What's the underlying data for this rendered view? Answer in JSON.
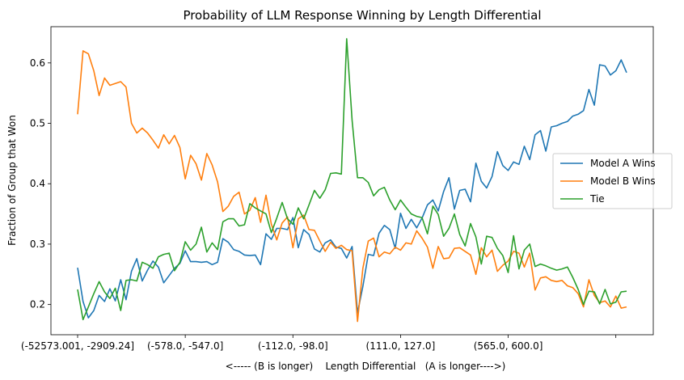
{
  "chart_data": {
    "type": "line",
    "title": "Probability of LLM Response Winning by Length Differential",
    "xlabel": "<----- (B is longer)    Length Differential   (A is longer---->)",
    "ylabel": "Fraction of Group that Won",
    "x_tick_labels": [
      "(-52573.001, -2909.24]",
      "(-578.0, -547.0]",
      "(-112.0, -98.0]",
      "(111.0, 127.0]",
      "(565.0, 600.0]",
      ""
    ],
    "x_tick_positions": [
      0,
      20,
      40,
      60,
      80,
      100
    ],
    "ylim": [
      0.15,
      0.66
    ],
    "yticks": [
      0.2,
      0.3,
      0.4,
      0.5,
      0.6
    ],
    "ytick_labels": [
      "0.2",
      "0.3",
      "0.4",
      "0.5",
      "0.6"
    ],
    "legend_position": "center-right",
    "series": [
      {
        "name": "Model A Wins",
        "color": "#1f77b4",
        "values": [
          0.261,
          0.205,
          0.178,
          0.19,
          0.215,
          0.205,
          0.226,
          0.206,
          0.241,
          0.208,
          0.255,
          0.276,
          0.239,
          0.257,
          0.272,
          0.262,
          0.236,
          0.248,
          0.26,
          0.268,
          0.289,
          0.271,
          0.271,
          0.27,
          0.271,
          0.266,
          0.27,
          0.309,
          0.303,
          0.291,
          0.288,
          0.282,
          0.281,
          0.282,
          0.266,
          0.317,
          0.308,
          0.326,
          0.326,
          0.324,
          0.344,
          0.294,
          0.324,
          0.316,
          0.292,
          0.287,
          0.302,
          0.307,
          0.295,
          0.293,
          0.277,
          0.296,
          0.186,
          0.23,
          0.283,
          0.281,
          0.318,
          0.331,
          0.324,
          0.293,
          0.351,
          0.326,
          0.341,
          0.327,
          0.343,
          0.365,
          0.373,
          0.355,
          0.387,
          0.41,
          0.358,
          0.389,
          0.391,
          0.37,
          0.434,
          0.404,
          0.393,
          0.412,
          0.453,
          0.43,
          0.422,
          0.436,
          0.432,
          0.462,
          0.44,
          0.481,
          0.488,
          0.454,
          0.494,
          0.496,
          0.5,
          0.503,
          0.512,
          0.515,
          0.521,
          0.556,
          0.53,
          0.597,
          0.595,
          0.58,
          0.587,
          0.605,
          0.584
        ]
      },
      {
        "name": "Model B Wins",
        "color": "#ff7f0e",
        "values": [
          0.515,
          0.62,
          0.615,
          0.587,
          0.546,
          0.575,
          0.563,
          0.566,
          0.569,
          0.56,
          0.5,
          0.484,
          0.492,
          0.484,
          0.472,
          0.459,
          0.481,
          0.466,
          0.48,
          0.46,
          0.408,
          0.447,
          0.433,
          0.406,
          0.45,
          0.431,
          0.403,
          0.354,
          0.363,
          0.379,
          0.386,
          0.35,
          0.356,
          0.377,
          0.336,
          0.381,
          0.333,
          0.307,
          0.335,
          0.345,
          0.294,
          0.342,
          0.348,
          0.324,
          0.323,
          0.305,
          0.288,
          0.303,
          0.293,
          0.298,
          0.291,
          0.289,
          0.172,
          0.26,
          0.305,
          0.31,
          0.279,
          0.287,
          0.284,
          0.295,
          0.29,
          0.302,
          0.3,
          0.322,
          0.31,
          0.295,
          0.26,
          0.296,
          0.276,
          0.277,
          0.293,
          0.294,
          0.288,
          0.282,
          0.25,
          0.294,
          0.279,
          0.29,
          0.255,
          0.265,
          0.272,
          0.288,
          0.285,
          0.262,
          0.285,
          0.224,
          0.244,
          0.246,
          0.24,
          0.238,
          0.24,
          0.231,
          0.228,
          0.218,
          0.196,
          0.241,
          0.215,
          0.203,
          0.206,
          0.196,
          0.214,
          0.194,
          0.196
        ]
      },
      {
        "name": "Tie",
        "color": "#2ca02c",
        "values": [
          0.225,
          0.175,
          0.196,
          0.218,
          0.238,
          0.221,
          0.21,
          0.227,
          0.19,
          0.24,
          0.241,
          0.239,
          0.27,
          0.266,
          0.26,
          0.279,
          0.283,
          0.285,
          0.256,
          0.27,
          0.304,
          0.29,
          0.3,
          0.328,
          0.287,
          0.302,
          0.291,
          0.337,
          0.342,
          0.342,
          0.33,
          0.332,
          0.367,
          0.36,
          0.355,
          0.35,
          0.319,
          0.343,
          0.369,
          0.342,
          0.333,
          0.36,
          0.342,
          0.365,
          0.389,
          0.376,
          0.39,
          0.417,
          0.418,
          0.416,
          0.64,
          0.505,
          0.41,
          0.41,
          0.402,
          0.38,
          0.39,
          0.394,
          0.373,
          0.357,
          0.373,
          0.361,
          0.35,
          0.346,
          0.344,
          0.317,
          0.363,
          0.349,
          0.313,
          0.326,
          0.35,
          0.316,
          0.297,
          0.334,
          0.312,
          0.267,
          0.313,
          0.311,
          0.293,
          0.281,
          0.253,
          0.314,
          0.259,
          0.29,
          0.3,
          0.263,
          0.267,
          0.264,
          0.26,
          0.257,
          0.259,
          0.262,
          0.245,
          0.225,
          0.2,
          0.222,
          0.221,
          0.201,
          0.225,
          0.201,
          0.204,
          0.221,
          0.222
        ]
      }
    ]
  }
}
